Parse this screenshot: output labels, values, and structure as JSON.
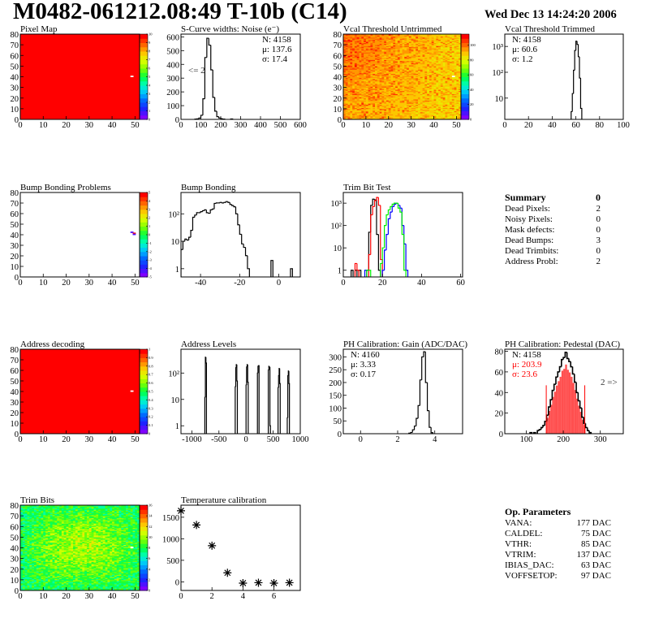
{
  "header": {
    "title": "M0482-061212.08:49 T-10b (C14)",
    "date": "Wed Dec 13 14:24:20 2006"
  },
  "summary": {
    "title": "Summary",
    "value": "0",
    "rows": [
      {
        "label": "Dead Pixels:",
        "value": "2"
      },
      {
        "label": "Noisy Pixels:",
        "value": "0"
      },
      {
        "label": "Mask defects:",
        "value": "0"
      },
      {
        "label": "Dead Bumps:",
        "value": "3"
      },
      {
        "label": "Dead Trimbits:",
        "value": "0"
      },
      {
        "label": "Address Probl:",
        "value": "2"
      }
    ]
  },
  "op_parameters": {
    "title": "Op. Parameters",
    "rows": [
      {
        "label": "VANA:",
        "value": "177 DAC"
      },
      {
        "label": "CALDEL:",
        "value": "75 DAC"
      },
      {
        "label": "VTHR:",
        "value": "85 DAC"
      },
      {
        "label": "VTRIM:",
        "value": "137 DAC"
      },
      {
        "label": "IBIAS_DAC:",
        "value": "63 DAC"
      },
      {
        "label": "VOFFSETOP:",
        "value": "97 DAC"
      }
    ]
  },
  "colors": {
    "frame": "#000000",
    "fit": "#ff0000",
    "trim_series": [
      "#000000",
      "#ff0000",
      "#0000ff",
      "#00ee00"
    ]
  },
  "chart_data": [
    {
      "id": "pixel-map",
      "type": "heatmap",
      "title": "Pixel Map",
      "xlim": [
        0,
        52
      ],
      "ylim": [
        0,
        80
      ],
      "zlim": [
        0,
        10
      ],
      "xticks": [
        0,
        10,
        20,
        30,
        40,
        50
      ],
      "yticks": [
        0,
        10,
        20,
        30,
        40,
        50,
        60,
        70,
        80
      ],
      "zticks": [
        0,
        1,
        2,
        3,
        4,
        5,
        6,
        7,
        8,
        9,
        10
      ],
      "fill_value": 10,
      "cells": [
        [
          48,
          40,
          null
        ]
      ]
    },
    {
      "id": "s-curve-noise",
      "type": "histogram",
      "title": "S-Curve widths: Noise (e⁻)",
      "xlim": [
        0,
        600
      ],
      "ylim": [
        0,
        620
      ],
      "logy": false,
      "xticks": [
        0,
        100,
        200,
        300,
        400,
        500,
        600
      ],
      "yticks": [
        0,
        100,
        200,
        300,
        400,
        500,
        600
      ],
      "series": [
        {
          "bin_width": 10,
          "x": [
            70,
            80,
            90,
            100,
            110,
            120,
            130,
            140,
            150,
            160,
            170,
            180,
            190,
            200,
            210,
            250
          ],
          "y": [
            2,
            4,
            10,
            30,
            150,
            450,
            590,
            540,
            360,
            160,
            60,
            20,
            10,
            5,
            2,
            3
          ]
        }
      ],
      "stats": [
        "N: 4158",
        "μ: 137.6",
        "σ: 17.4"
      ],
      "annotation": "<= 2"
    },
    {
      "id": "vcal-untrimmed",
      "type": "heatmap",
      "title": "Vcal Threshold Untrimmed",
      "xlim": [
        0,
        52
      ],
      "ylim": [
        0,
        80
      ],
      "zlim": [
        0,
        115
      ],
      "xticks": [
        0,
        10,
        20,
        30,
        40,
        50
      ],
      "yticks": [
        0,
        10,
        20,
        30,
        40,
        50,
        60,
        70,
        80
      ],
      "zticks": [
        0,
        20,
        40,
        60,
        80,
        100
      ],
      "pattern": "noisy",
      "value_range": [
        78,
        110
      ],
      "cells": [
        [
          48,
          40,
          null
        ]
      ]
    },
    {
      "id": "vcal-trimmed",
      "type": "histogram",
      "title": "Vcal Threshold Trimmed",
      "xlim": [
        0,
        100
      ],
      "ylim": [
        1.5,
        3000
      ],
      "logy": true,
      "xticks": [
        0,
        20,
        40,
        60,
        80,
        100
      ],
      "yticks": [
        10,
        100,
        1000
      ],
      "ytick_labels": [
        "10",
        "10²",
        "10³"
      ],
      "series": [
        {
          "bin_width": 1,
          "x": [
            56,
            57,
            58,
            59,
            60,
            61,
            62,
            63,
            64
          ],
          "y": [
            3,
            15,
            120,
            700,
            1600,
            1200,
            400,
            60,
            4
          ]
        }
      ],
      "stats": [
        "N: 4158",
        "μ: 60.6",
        "σ:  1.2"
      ]
    },
    {
      "id": "bump-bonding-problems",
      "type": "heatmap",
      "title": "Bump Bonding Problems",
      "xlim": [
        0,
        52
      ],
      "ylim": [
        0,
        80
      ],
      "zlim": [
        -5,
        5
      ],
      "xticks": [
        0,
        10,
        20,
        30,
        40,
        50
      ],
      "yticks": [
        0,
        10,
        20,
        30,
        40,
        50,
        60,
        70,
        80
      ],
      "zticks": [
        -5,
        -4,
        -3,
        -2,
        -1,
        0,
        1,
        2,
        3,
        4,
        5
      ],
      "fill_value": null,
      "cells": [
        [
          48,
          42,
          -4.5
        ],
        [
          49,
          41,
          5
        ],
        [
          49,
          40,
          -4.5
        ]
      ]
    },
    {
      "id": "bump-bonding",
      "type": "histogram",
      "title": "Bump Bonding",
      "xlim": [
        -50,
        11
      ],
      "ylim": [
        0.5,
        600
      ],
      "logy": true,
      "xticks": [
        -40,
        -20,
        0
      ],
      "yticks": [
        1,
        10,
        100
      ],
      "ytick_labels": [
        "1",
        "10",
        "10²"
      ],
      "series": [
        {
          "bin_width": 1,
          "x": [
            -50,
            -49,
            -48,
            -47,
            -46,
            -45,
            -44,
            -43,
            -42,
            -41,
            -40,
            -39,
            -38,
            -37,
            -36,
            -35,
            -34,
            -33,
            -32,
            -31,
            -30,
            -29,
            -28,
            -27,
            -26,
            -25,
            -24,
            -23,
            -22,
            -21,
            -20,
            -19,
            -18,
            -17,
            -16,
            -4,
            6
          ],
          "y": [
            5,
            10,
            12,
            11,
            14,
            25,
            75,
            90,
            110,
            110,
            120,
            130,
            140,
            110,
            105,
            140,
            150,
            240,
            250,
            250,
            260,
            250,
            260,
            280,
            260,
            220,
            200,
            180,
            100,
            40,
            18,
            8,
            6,
            3,
            1,
            2,
            1
          ]
        }
      ]
    },
    {
      "id": "trim-bit-test",
      "type": "histogram",
      "title": "Trim Bit Test",
      "xlim": [
        0,
        61
      ],
      "ylim": [
        0.5,
        3000
      ],
      "logy": true,
      "xticks": [
        0,
        20,
        40,
        60
      ],
      "yticks": [
        1,
        10,
        100,
        1000
      ],
      "ytick_labels": [
        "1",
        "10",
        "10²",
        "10³"
      ],
      "series": [
        {
          "bin_width": 1,
          "x": [
            4,
            6,
            8,
            12,
            13,
            14,
            15,
            16,
            17,
            18
          ],
          "y": [
            1,
            1,
            1,
            1,
            50,
            800,
            1500,
            1400,
            40,
            1
          ]
        },
        {
          "bin_width": 1,
          "x": [
            6,
            7,
            13,
            14,
            15,
            16,
            17,
            18,
            19
          ],
          "y": [
            2,
            1,
            5,
            300,
            700,
            1300,
            1800,
            800,
            3
          ]
        },
        {
          "bin_width": 1,
          "x": [
            11,
            20,
            21,
            22,
            23,
            24,
            25,
            26,
            27,
            28,
            29,
            30,
            31,
            32
          ],
          "y": [
            1,
            1,
            8,
            40,
            200,
            400,
            700,
            900,
            1000,
            800,
            600,
            100,
            15,
            1
          ]
        },
        {
          "bin_width": 1,
          "x": [
            12,
            13,
            19,
            20,
            21,
            22,
            23,
            24,
            25,
            26,
            27,
            28,
            29,
            30,
            31
          ],
          "y": [
            1,
            1,
            2,
            10,
            100,
            300,
            500,
            700,
            900,
            1000,
            1000,
            600,
            400,
            40,
            1
          ]
        }
      ]
    },
    {
      "id": "address-decoding",
      "type": "heatmap",
      "title": "Address decoding",
      "xlim": [
        0,
        52
      ],
      "ylim": [
        0,
        80
      ],
      "zlim": [
        0,
        1
      ],
      "xticks": [
        0,
        10,
        20,
        30,
        40,
        50
      ],
      "yticks": [
        0,
        10,
        20,
        30,
        40,
        50,
        60,
        70,
        80
      ],
      "zticks": [
        0,
        0.1,
        0.2,
        0.3,
        0.4,
        0.5,
        0.6,
        0.7,
        0.8,
        0.9,
        1
      ],
      "fill_value": 1,
      "cells": [
        [
          48,
          40,
          null
        ]
      ]
    },
    {
      "id": "address-levels",
      "type": "histogram",
      "title": "Address Levels",
      "xlim": [
        -1200,
        1000
      ],
      "ylim": [
        0.5,
        800
      ],
      "logy": true,
      "xticks": [
        -1000,
        -500,
        0,
        500,
        1000
      ],
      "yticks": [
        1,
        10,
        100
      ],
      "ytick_labels": [
        "1",
        "10",
        "10²"
      ],
      "series": [
        {
          "bin_width": 10,
          "x": [
            -760,
            -750,
            -740,
            -200,
            -190,
            -180,
            -170,
            0,
            10,
            20,
            30,
            210,
            220,
            230,
            410,
            420,
            430,
            440,
            590,
            600,
            610,
            620,
            760,
            770,
            780,
            790
          ],
          "y": [
            12,
            400,
            240,
            30,
            160,
            210,
            50,
            35,
            170,
            210,
            45,
            100,
            180,
            190,
            130,
            180,
            170,
            1,
            28,
            80,
            150,
            40,
            2,
            80,
            120,
            40
          ]
        }
      ]
    },
    {
      "id": "ph-gain",
      "type": "histogram",
      "title": "PH Calibration: Gain (ADC/DAC)",
      "xlim": [
        -0.93,
        5.5
      ],
      "ylim": [
        0,
        330
      ],
      "logy": false,
      "xticks": [
        0,
        2,
        4
      ],
      "yticks": [
        0,
        50,
        100,
        150,
        200,
        250,
        300
      ],
      "series": [
        {
          "bin_width": 0.1,
          "x": [
            2.6,
            2.7,
            2.8,
            2.9,
            3.0,
            3.1,
            3.2,
            3.3,
            3.4,
            3.5,
            3.6,
            3.7,
            3.8
          ],
          "y": [
            2,
            5,
            15,
            30,
            60,
            110,
            210,
            300,
            320,
            200,
            90,
            25,
            4
          ]
        }
      ],
      "stats": [
        "N: 4160",
        "μ: 3.33",
        "σ: 0.17"
      ]
    },
    {
      "id": "ph-pedestal",
      "type": "histogram",
      "title": "PH Calibration: Pedestal (DAC)",
      "xlim": [
        42,
        362
      ],
      "ylim": [
        0,
        82
      ],
      "logy": false,
      "xticks": [
        100,
        200,
        300
      ],
      "yticks": [
        0,
        20,
        40,
        60,
        80
      ],
      "series": [
        {
          "bin_width": 5,
          "x": [
            110,
            120,
            130,
            135,
            140,
            145,
            150,
            155,
            160,
            165,
            170,
            175,
            180,
            185,
            190,
            195,
            200,
            205,
            210,
            215,
            220,
            225,
            230,
            235,
            240,
            245,
            250,
            255,
            260,
            265,
            270
          ],
          "y": [
            1,
            1,
            3,
            4,
            6,
            8,
            12,
            18,
            26,
            33,
            42,
            48,
            55,
            60,
            65,
            72,
            74,
            79,
            73,
            70,
            65,
            58,
            50,
            40,
            32,
            25,
            16,
            10,
            6,
            3,
            1
          ]
        }
      ],
      "fit_window": [
        154,
        258
      ],
      "fit_fraction": 0.85,
      "stats": [
        "N: 4158",
        "μ: 203.9",
        "σ: 23.6"
      ],
      "stats_colors": [
        "#000000",
        "#ff0000",
        "#ff0000"
      ],
      "annotation": "2 =>"
    },
    {
      "id": "trim-bits",
      "type": "heatmap",
      "title": "Trim Bits",
      "xlim": [
        0,
        52
      ],
      "ylim": [
        0,
        80
      ],
      "zlim": [
        0,
        16
      ],
      "xticks": [
        0,
        10,
        20,
        30,
        40,
        50
      ],
      "yticks": [
        0,
        10,
        20,
        30,
        40,
        50,
        60,
        70,
        80
      ],
      "zticks": [
        0,
        2,
        4,
        6,
        8,
        10,
        12,
        14,
        16
      ],
      "pattern": "noisy",
      "value_range": [
        5,
        12
      ],
      "cells": [
        [
          48,
          40,
          null
        ]
      ]
    },
    {
      "id": "temperature-calibration",
      "type": "scatter",
      "title": "Temperature calibration",
      "xlim": [
        0,
        7.7
      ],
      "ylim": [
        -200,
        1780
      ],
      "xticks": [
        0,
        2,
        4,
        6
      ],
      "yticks": [
        0,
        500,
        1000,
        1500
      ],
      "x": [
        0,
        1,
        2,
        3,
        4,
        5,
        6,
        7
      ],
      "y": [
        1650,
        1320,
        840,
        210,
        -30,
        -20,
        -30,
        -20
      ],
      "marker": "star"
    }
  ]
}
